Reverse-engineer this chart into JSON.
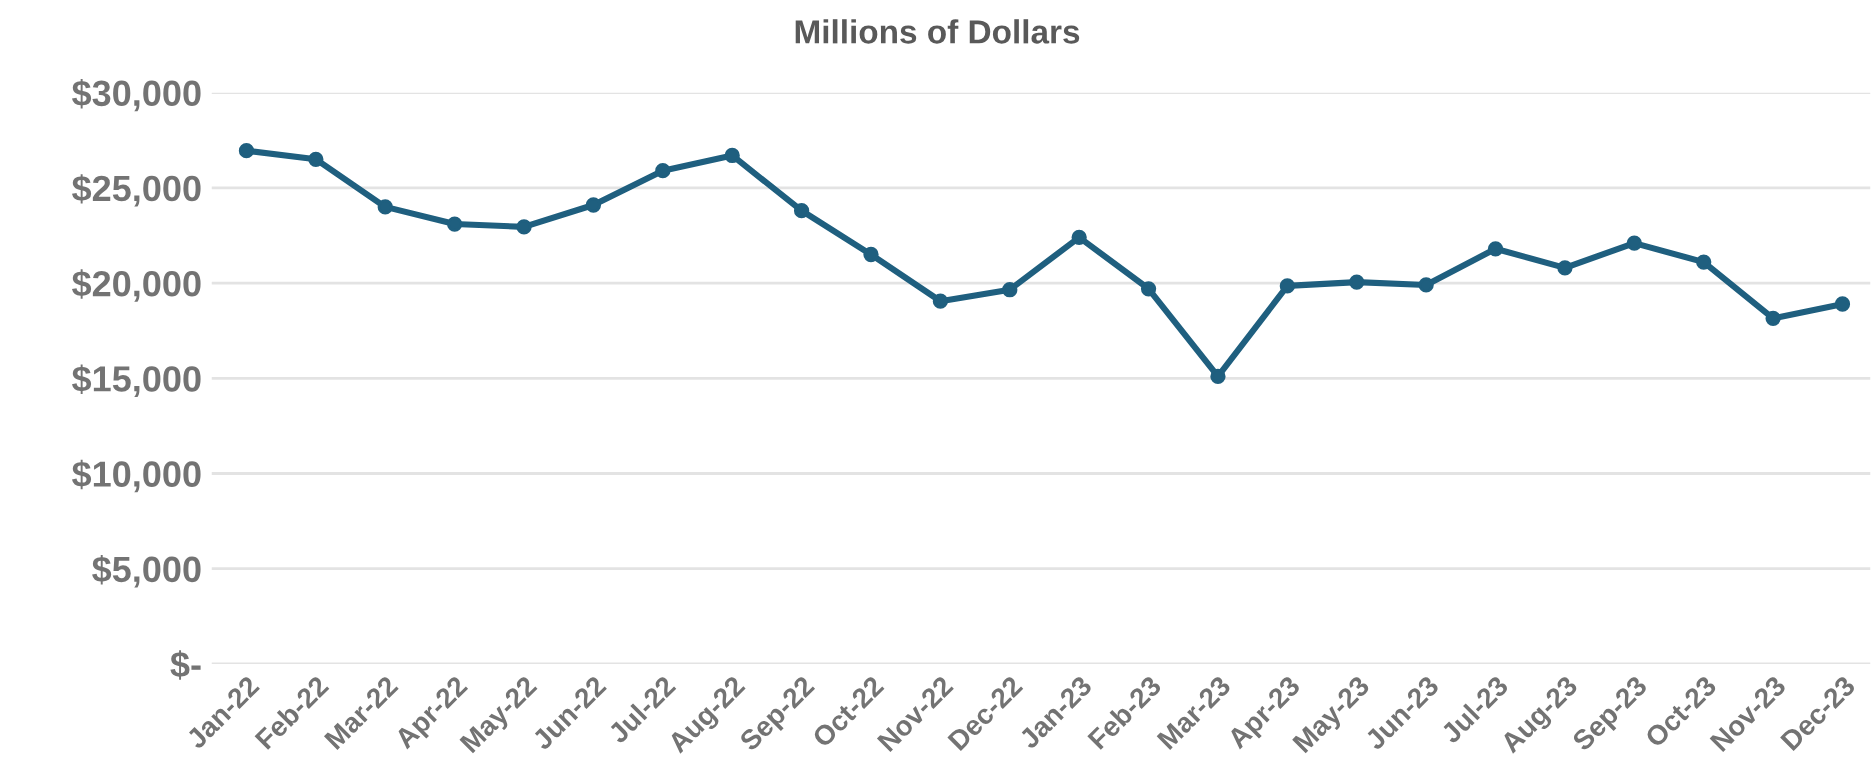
{
  "chart_data": {
    "type": "line",
    "title": "Millions of Dollars",
    "categories": [
      "Jan-22",
      "Feb-22",
      "Mar-22",
      "Apr-22",
      "May-22",
      "Jun-22",
      "Jul-22",
      "Aug-22",
      "Sep-22",
      "Oct-22",
      "Nov-22",
      "Dec-22",
      "Jan-23",
      "Feb-23",
      "Mar-23",
      "Apr-23",
      "May-23",
      "Jun-23",
      "Jul-23",
      "Aug-23",
      "Sep-23",
      "Oct-23",
      "Nov-23",
      "Dec-23"
    ],
    "series": [
      {
        "color": "#1f5f7f",
        "values": [
          26950,
          26500,
          24000,
          23100,
          22950,
          24100,
          25900,
          26700,
          23800,
          21500,
          19050,
          19650,
          22400,
          19700,
          15100,
          19850,
          20050,
          19900,
          21800,
          20800,
          22100,
          21100,
          18150,
          18900
        ]
      }
    ],
    "ylim": [
      0,
      30000
    ],
    "yticks": [
      {
        "value": 0,
        "label": "$-"
      },
      {
        "value": 5000,
        "label": "$5,000"
      },
      {
        "value": 10000,
        "label": "$10,000"
      },
      {
        "value": 15000,
        "label": "$15,000"
      },
      {
        "value": 20000,
        "label": "$20,000"
      },
      {
        "value": 25000,
        "label": "$25,000"
      },
      {
        "value": 30000,
        "label": "$30,000"
      }
    ],
    "grid": "y",
    "marker": "circle",
    "line_style": "solid",
    "legend": false
  }
}
